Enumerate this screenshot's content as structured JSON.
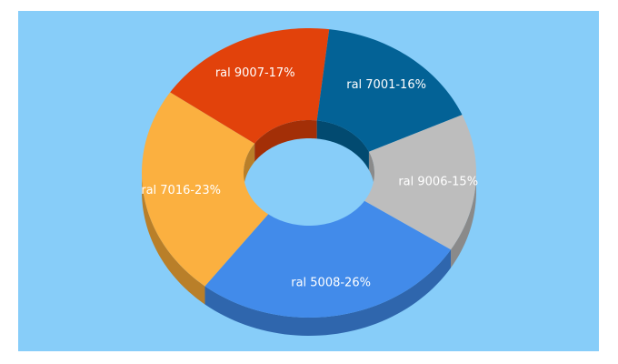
{
  "chart_data": {
    "type": "pie",
    "donut": true,
    "three_d": true,
    "slices": [
      {
        "label": "ral 5008-26%",
        "name": "ral 5008",
        "value": 26,
        "color": "#428bea",
        "side_color": "#2f66ad"
      },
      {
        "label": "ral 7016-23%",
        "name": "ral 7016",
        "value": 23,
        "color": "#fbb040",
        "side_color": "#b97f29"
      },
      {
        "label": "ral 9007-17%",
        "name": "ral 9007",
        "value": 17,
        "color": "#e2420b",
        "side_color": "#a32f07"
      },
      {
        "label": "ral 7001-16%",
        "name": "ral 7001",
        "value": 16,
        "color": "#036296",
        "side_color": "#024a70"
      },
      {
        "label": "ral 9006-15%",
        "name": "ral 9006",
        "value": 15,
        "color": "#bdbdbd",
        "side_color": "#8a8a8a"
      }
    ]
  },
  "colors": {
    "background": "#87cdf9"
  }
}
